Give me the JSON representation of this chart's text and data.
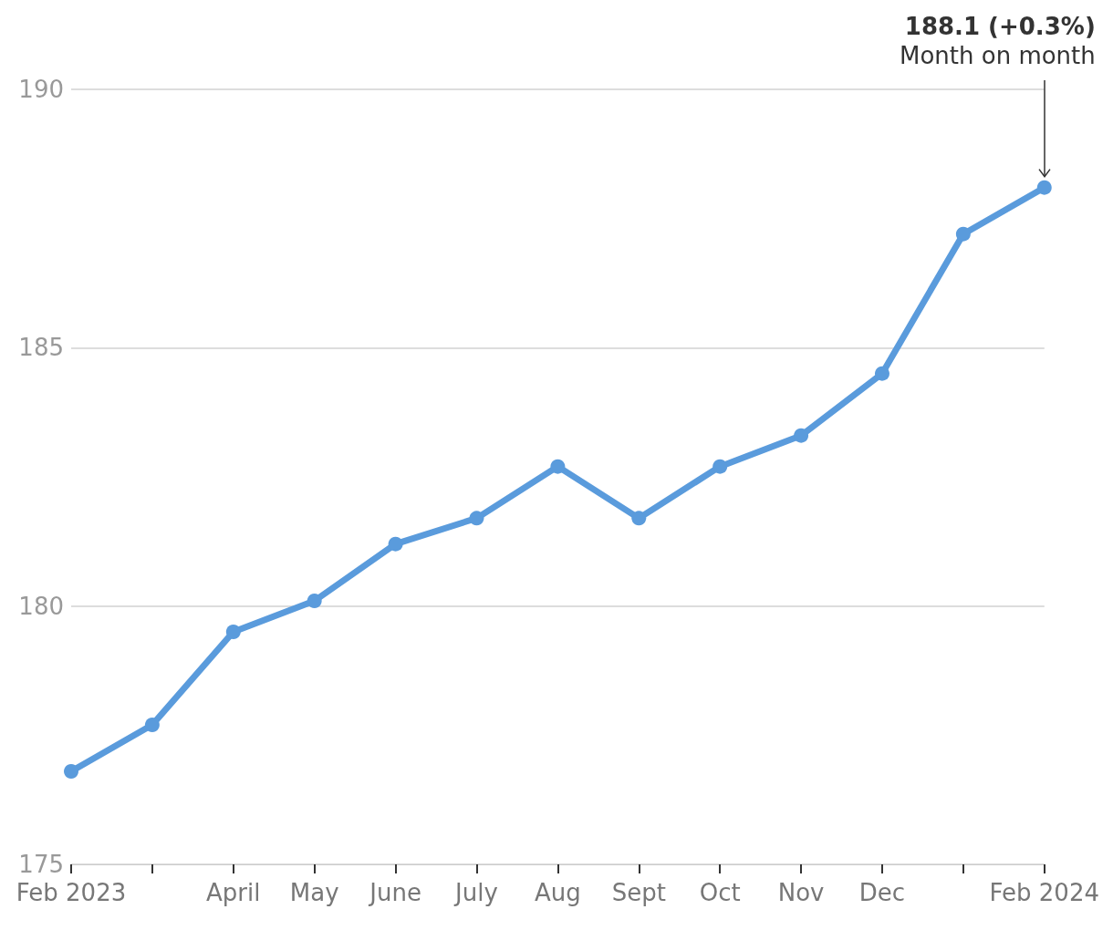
{
  "chart_data": {
    "type": "line",
    "categories": [
      "Feb 2023",
      null,
      "April",
      "May",
      "June",
      "July",
      "Aug",
      "Sept",
      "Oct",
      "Nov",
      "Dec",
      null,
      "Feb 2024"
    ],
    "series": [
      {
        "color": "#5a9bdc",
        "values": [
          176.8,
          177.7,
          179.5,
          180.1,
          181.2,
          181.7,
          182.7,
          181.7,
          182.7,
          183.3,
          184.5,
          187.2,
          188.1
        ]
      }
    ],
    "ylim": [
      175,
      190
    ],
    "yticks": [
      175,
      180,
      185,
      190
    ],
    "grid": "y",
    "marker": "circle",
    "line_style": "solid",
    "annotations": [
      "188.1 (+0.3%)",
      "Month on month"
    ]
  }
}
